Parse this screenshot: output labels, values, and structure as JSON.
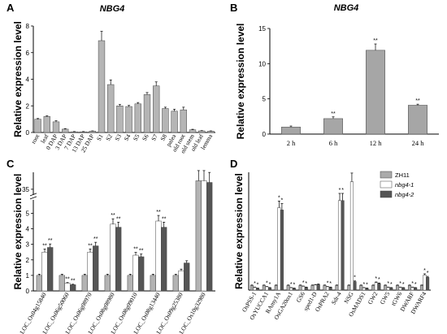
{
  "chart_data": [
    {
      "panel": "A",
      "type": "bar",
      "title": "NBG4",
      "ylabel": "Relative expression level",
      "ylim": [
        0,
        8
      ],
      "yticks": [
        0,
        2,
        4,
        6,
        8
      ],
      "categories": [
        "root",
        "leaf",
        "0 DAP",
        "3 DAP",
        "7 DAP",
        "13 DAP",
        "25 DAP",
        "S1",
        "S2",
        "S3",
        "S4",
        "S5",
        "S6",
        "S7",
        "S8",
        "palea",
        "old root",
        "old stem",
        "old leaf",
        "lemma"
      ],
      "values": [
        1.0,
        1.2,
        0.8,
        0.25,
        0.05,
        0.05,
        0.1,
        6.9,
        3.6,
        2.0,
        1.95,
        2.15,
        2.85,
        3.5,
        1.8,
        1.6,
        1.7,
        0.2,
        0.12,
        0.1
      ],
      "errors": [
        0.05,
        0.05,
        0.08,
        0.04,
        0.02,
        0.02,
        0.02,
        0.7,
        0.35,
        0.1,
        0.08,
        0.1,
        0.15,
        0.3,
        0.1,
        0.15,
        0.2,
        0.04,
        0.02,
        0.02
      ],
      "color": "#b5b5b5"
    },
    {
      "panel": "B",
      "type": "bar",
      "title": "NBG4",
      "ylabel": "Relative expression level",
      "ylim": [
        0,
        15
      ],
      "yticks": [
        0,
        5,
        10,
        15
      ],
      "categories": [
        "2 h",
        "6 h",
        "12 h",
        "24 h"
      ],
      "values": [
        1.0,
        2.2,
        11.9,
        4.1
      ],
      "errors": [
        0.15,
        0.25,
        0.9,
        0.15
      ],
      "significance": [
        "",
        "**",
        "**",
        "**"
      ],
      "color": "#a6a6a6"
    },
    {
      "panel": "C",
      "type": "bar",
      "ylabel": "Relative expression level",
      "ylim": [
        0,
        40
      ],
      "yticks": [
        0,
        1,
        2,
        3,
        4,
        5,
        35
      ],
      "axis_break": [
        5.5,
        35
      ],
      "categories": [
        "LOC_Os04g15840",
        "LOC_Os06g50060",
        "LOC_Os06g08970",
        "LOC_Os08g08980",
        "LOC_Os08g09010",
        "LOC_Os08g13440",
        "LOC_Os09g25380",
        "LOC_Os10g32980"
      ],
      "series": [
        {
          "name": "ZH11",
          "values": [
            1.0,
            1.0,
            1.0,
            1.0,
            1.0,
            1.0,
            1.0,
            37.5
          ],
          "color": "#b3b3b3"
        },
        {
          "name": "nbg4-1",
          "values": [
            2.5,
            0.5,
            2.5,
            4.3,
            2.3,
            4.5,
            1.3,
            37.5
          ],
          "color": "#ffffff"
        },
        {
          "name": "nbg4-2",
          "values": [
            2.8,
            0.4,
            2.9,
            4.1,
            2.2,
            4.1,
            1.8,
            37.0
          ],
          "color": "#555555"
        }
      ],
      "significance": [
        [
          "",
          "**",
          "**"
        ],
        [
          "",
          "**",
          "**"
        ],
        [
          "",
          "**",
          "**"
        ],
        [
          "",
          "**",
          "**"
        ],
        [
          "",
          "**",
          "**"
        ],
        [
          "",
          "**",
          "**"
        ],
        [
          "",
          "",
          ""
        ],
        [
          "",
          "",
          ""
        ]
      ]
    },
    {
      "panel": "D",
      "type": "bar",
      "ylabel": "Relative expression level",
      "ylim": [
        0,
        25
      ],
      "yticks": [],
      "categories": [
        "OsPSS-1",
        "OsYUCCA1",
        "RAmy1A",
        "OsGA20ox1",
        "GS6",
        "sped1-D",
        "OsPRA2",
        "Sdr-4",
        "NSG",
        "OsMADS1",
        "GW2",
        "GW5",
        "tGW6",
        "DWARF",
        "DWARF4"
      ],
      "series": [
        {
          "name": "ZH11",
          "values": [
            1.0,
            1.0,
            1.0,
            1.0,
            1.0,
            1.0,
            1.0,
            1.0,
            1.0,
            1.0,
            1.0,
            1.0,
            1.0,
            1.0,
            1.0
          ],
          "color": "#aaaaaa"
        },
        {
          "name": "nbg4-1",
          "values": [
            0.6,
            0.7,
            17.5,
            0.5,
            0.8,
            1.1,
            0.7,
            19.0,
            23.0,
            0.5,
            1.6,
            0.6,
            0.6,
            0.6,
            3.2
          ],
          "color": "#ffffff"
        },
        {
          "name": "nbg4-2",
          "values": [
            0.4,
            0.5,
            17.0,
            0.4,
            0.6,
            1.2,
            0.6,
            19.0,
            1.8,
            0.4,
            1.4,
            0.5,
            0.5,
            0.5,
            2.7
          ],
          "color": "#555555"
        }
      ],
      "significance": [
        [
          "",
          "*",
          "*"
        ],
        [
          "",
          "*",
          "*"
        ],
        [
          "",
          "*",
          "*"
        ],
        [
          "",
          "*",
          "*"
        ],
        [
          "",
          "*",
          "*"
        ],
        [
          "",
          "",
          ""
        ],
        [
          "",
          "*",
          "*"
        ],
        [
          "",
          "*",
          "*"
        ],
        [
          "",
          "",
          "*"
        ],
        [
          "",
          "*",
          "*"
        ],
        [
          "",
          "*",
          "*"
        ],
        [
          "",
          "*",
          "*"
        ],
        [
          "",
          "*",
          "*"
        ],
        [
          "",
          "*",
          "*"
        ],
        [
          "",
          "*",
          "*"
        ]
      ],
      "legend": {
        "placement": "top-right",
        "entries": [
          "ZH11",
          "nbg4-1",
          "nbg4-2"
        ]
      }
    }
  ]
}
